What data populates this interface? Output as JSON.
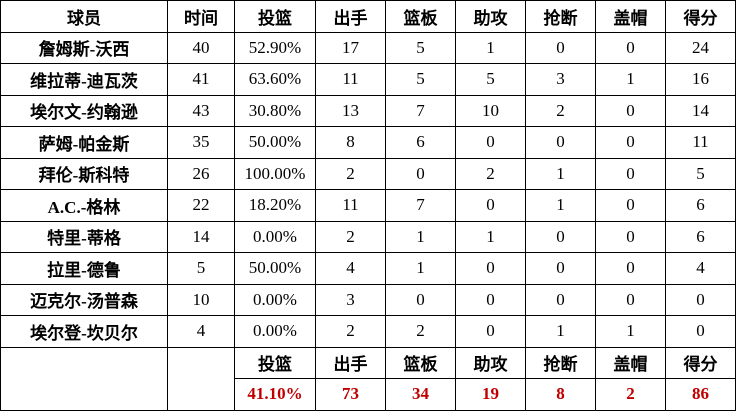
{
  "headers": [
    "球员",
    "时间",
    "投篮",
    "出手",
    "篮板",
    "助攻",
    "抢断",
    "盖帽",
    "得分"
  ],
  "rows": [
    [
      "詹姆斯-沃西",
      "40",
      "52.90%",
      "17",
      "5",
      "1",
      "0",
      "0",
      "24"
    ],
    [
      "维拉蒂-迪瓦茨",
      "41",
      "63.60%",
      "11",
      "5",
      "5",
      "3",
      "1",
      "16"
    ],
    [
      "埃尔文-约翰逊",
      "43",
      "30.80%",
      "13",
      "7",
      "10",
      "2",
      "0",
      "14"
    ],
    [
      "萨姆-帕金斯",
      "35",
      "50.00%",
      "8",
      "6",
      "0",
      "0",
      "0",
      "11"
    ],
    [
      "拜伦-斯科特",
      "26",
      "100.00%",
      "2",
      "0",
      "2",
      "1",
      "0",
      "5"
    ],
    [
      "A.C.-格林",
      "22",
      "18.20%",
      "11",
      "7",
      "0",
      "1",
      "0",
      "6"
    ],
    [
      "特里-蒂格",
      "14",
      "0.00%",
      "2",
      "1",
      "1",
      "0",
      "0",
      "6"
    ],
    [
      "拉里-德鲁",
      "5",
      "50.00%",
      "4",
      "1",
      "0",
      "0",
      "0",
      "4"
    ],
    [
      "迈克尔-汤普森",
      "10",
      "0.00%",
      "3",
      "0",
      "0",
      "0",
      "0",
      "0"
    ],
    [
      "埃尔登-坎贝尔",
      "4",
      "0.00%",
      "2",
      "2",
      "0",
      "1",
      "1",
      "0"
    ]
  ],
  "summary_headers": [
    "投篮",
    "出手",
    "篮板",
    "助攻",
    "抢断",
    "盖帽",
    "得分"
  ],
  "totals": [
    "41.10%",
    "73",
    "34",
    "19",
    "8",
    "2",
    "86"
  ],
  "colors": {
    "totals": "#c00000"
  }
}
